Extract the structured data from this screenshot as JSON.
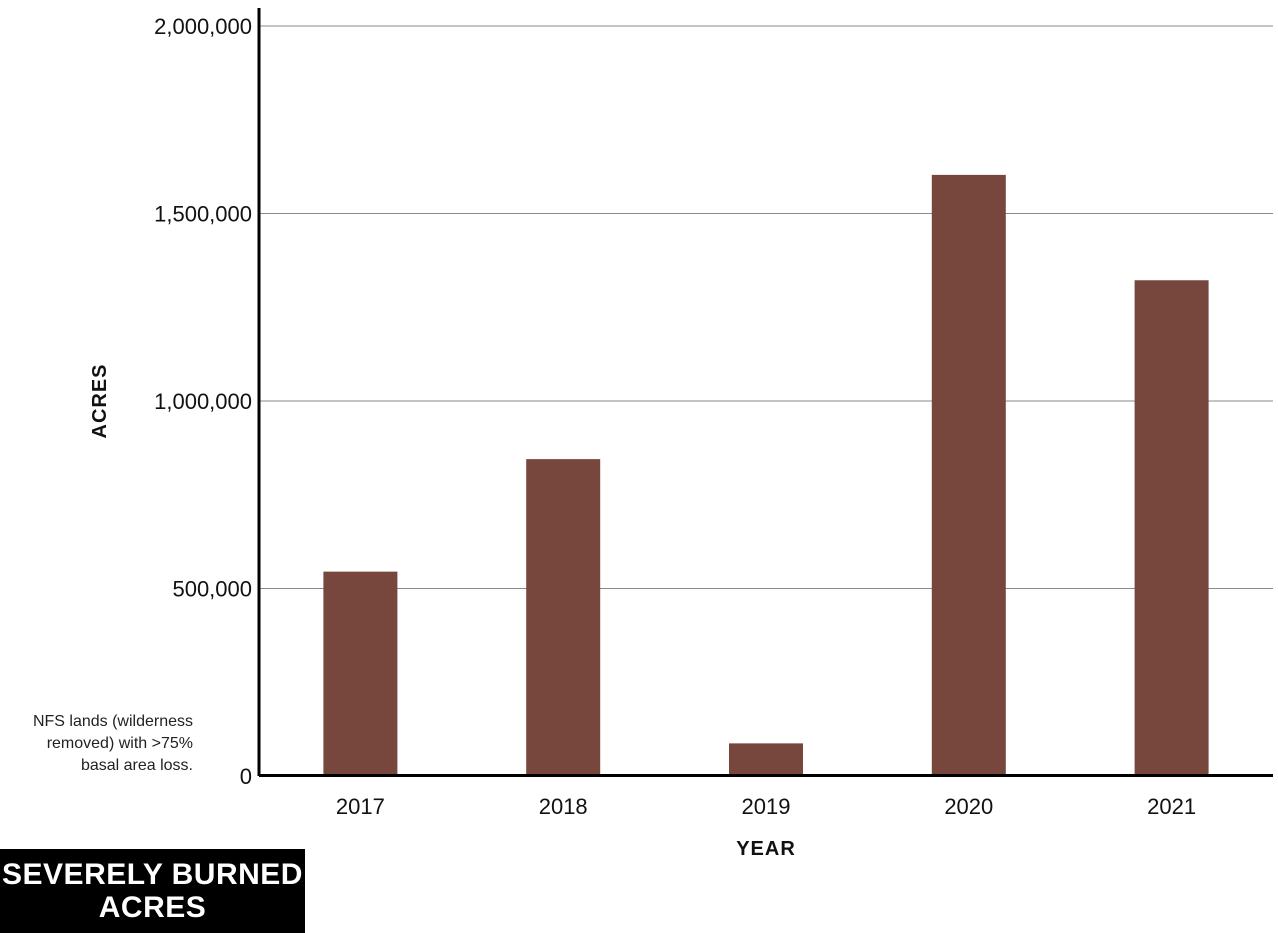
{
  "chart_data": {
    "type": "bar",
    "title": "SEVERELY BURNED ACRES",
    "xlabel": "YEAR",
    "ylabel": "ACRES",
    "categories": [
      "2017",
      "2018",
      "2019",
      "2020",
      "2021"
    ],
    "values": [
      545000,
      845000,
      87000,
      1603000,
      1322000
    ],
    "ylim": [
      0,
      2000000
    ],
    "yticks": [
      0,
      500000,
      1000000,
      1500000,
      2000000
    ],
    "ytick_labels": [
      "0",
      "500,000",
      "1,000,000",
      "1,500,000",
      "2,000,000"
    ],
    "grid": true,
    "bar_color": "#77473d",
    "note": [
      "NFS lands (wilderness",
      "removed) with >75%",
      "basal area loss."
    ]
  }
}
